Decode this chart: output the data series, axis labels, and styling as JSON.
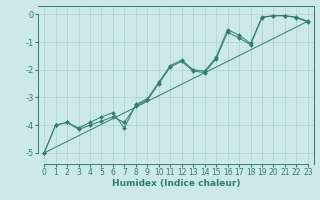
{
  "title": "",
  "xlabel": "Humidex (Indice chaleur)",
  "bg_color": "#cce8e8",
  "line_color": "#2e7d72",
  "grid_color": "#aad4d0",
  "xlim": [
    -0.5,
    23.5
  ],
  "ylim": [
    -5.4,
    0.3
  ],
  "yticks": [
    0,
    -1,
    -2,
    -3,
    -4,
    -5
  ],
  "xticks": [
    0,
    1,
    2,
    3,
    4,
    5,
    6,
    7,
    8,
    9,
    10,
    11,
    12,
    13,
    14,
    15,
    16,
    17,
    18,
    19,
    20,
    21,
    22,
    23
  ],
  "line1_x": [
    0,
    1,
    2,
    3,
    4,
    5,
    6,
    7,
    8,
    9,
    10,
    11,
    12,
    13,
    14,
    15,
    16,
    17,
    18,
    19,
    20,
    21,
    22,
    23
  ],
  "line1_y": [
    -5.0,
    -4.0,
    -3.9,
    -4.1,
    -3.9,
    -3.7,
    -3.55,
    -4.1,
    -3.25,
    -3.05,
    -2.45,
    -1.85,
    -1.65,
    -2.0,
    -2.05,
    -1.55,
    -0.55,
    -0.75,
    -1.05,
    -0.1,
    -0.05,
    -0.05,
    -0.1,
    -0.25
  ],
  "line2_x": [
    0,
    1,
    2,
    3,
    4,
    5,
    6,
    7,
    8,
    9,
    10,
    11,
    12,
    13,
    14,
    15,
    16,
    17,
    18,
    19,
    20,
    21,
    22,
    23
  ],
  "line2_y": [
    -5.0,
    -4.0,
    -3.9,
    -4.15,
    -4.0,
    -3.85,
    -3.7,
    -3.9,
    -3.3,
    -3.1,
    -2.5,
    -1.9,
    -1.7,
    -2.05,
    -2.1,
    -1.6,
    -0.65,
    -0.85,
    -1.1,
    -0.12,
    -0.05,
    -0.05,
    -0.12,
    -0.28
  ],
  "line3_x": [
    0,
    23
  ],
  "line3_y": [
    -5.0,
    -0.25
  ],
  "tick_fontsize": 5.5,
  "xlabel_fontsize": 6.5
}
